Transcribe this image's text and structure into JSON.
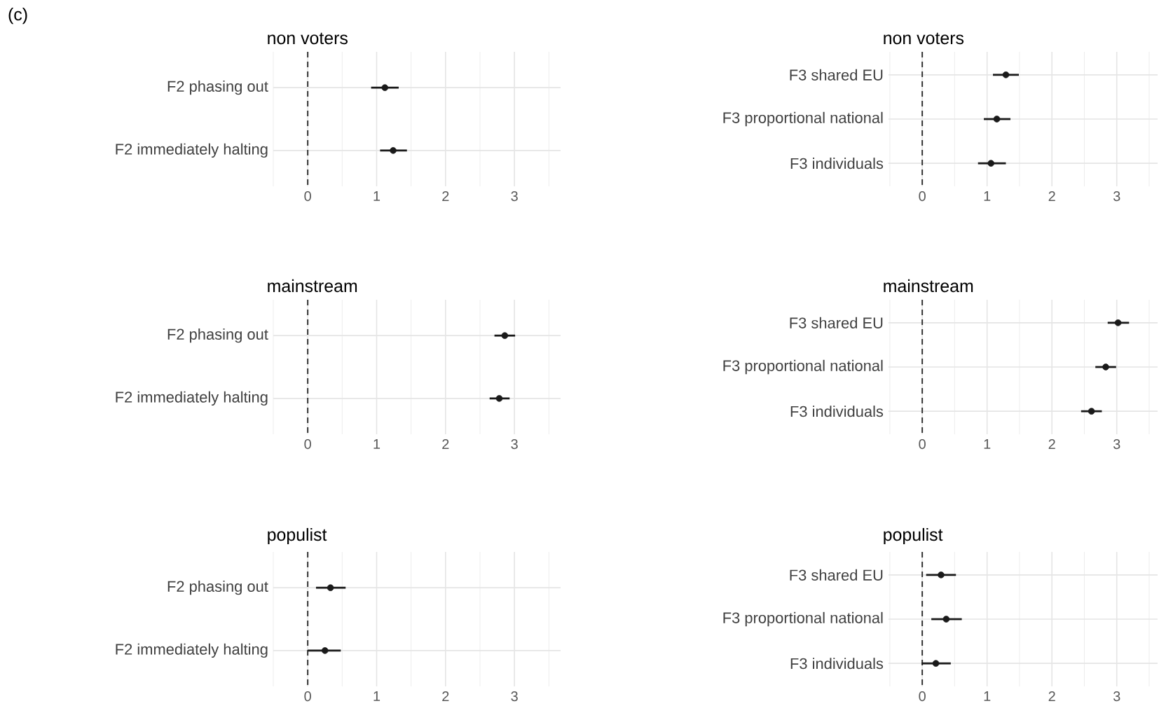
{
  "chart_data": [
    {
      "type": "scatter",
      "orientation": "horizontal",
      "title": "non voters",
      "annotations": [
        "(c)"
      ],
      "categories": [
        "F2 phasing out",
        "F2 immediately halting"
      ],
      "values": [
        1.12,
        1.24
      ],
      "errors": [
        [
          0.92,
          1.32
        ],
        [
          1.05,
          1.44
        ]
      ],
      "color": "#1a1a1a",
      "xlim": [
        -0.5,
        3.67
      ],
      "xticks": [
        0,
        1,
        2,
        3
      ],
      "grid": true,
      "ref_lines": [
        {
          "axis": "x",
          "value": 0,
          "line_style": "dashed",
          "color": "#333333"
        }
      ]
    },
    {
      "type": "scatter",
      "orientation": "horizontal",
      "title": "non voters",
      "categories": [
        "F3 shared EU",
        "F3 proportional national",
        "F3 individuals"
      ],
      "values": [
        1.29,
        1.15,
        1.06
      ],
      "errors": [
        [
          1.09,
          1.49
        ],
        [
          0.95,
          1.36
        ],
        [
          0.86,
          1.29
        ]
      ],
      "color": "#1a1a1a",
      "xlim": [
        -0.52,
        3.63
      ],
      "xticks": [
        0,
        1,
        2,
        3
      ],
      "grid": true,
      "ref_lines": [
        {
          "axis": "x",
          "value": 0,
          "line_style": "dashed",
          "color": "#333333"
        }
      ]
    },
    {
      "type": "scatter",
      "orientation": "horizontal",
      "title": "mainstream",
      "categories": [
        "F2 phasing out",
        "F2 immediately halting"
      ],
      "values": [
        2.86,
        2.78
      ],
      "errors": [
        [
          2.71,
          3.01
        ],
        [
          2.64,
          2.93
        ]
      ],
      "color": "#1a1a1a",
      "xlim": [
        -0.5,
        3.67
      ],
      "xticks": [
        0,
        1,
        2,
        3
      ],
      "grid": true,
      "ref_lines": [
        {
          "axis": "x",
          "value": 0,
          "line_style": "dashed",
          "color": "#333333"
        }
      ]
    },
    {
      "type": "scatter",
      "orientation": "horizontal",
      "title": "mainstream",
      "categories": [
        "F3 shared EU",
        "F3 proportional national",
        "F3 individuals"
      ],
      "values": [
        3.02,
        2.83,
        2.61
      ],
      "errors": [
        [
          2.86,
          3.19
        ],
        [
          2.67,
          2.99
        ],
        [
          2.45,
          2.77
        ]
      ],
      "color": "#1a1a1a",
      "xlim": [
        -0.52,
        3.63
      ],
      "xticks": [
        0,
        1,
        2,
        3
      ],
      "grid": true,
      "ref_lines": [
        {
          "axis": "x",
          "value": 0,
          "line_style": "dashed",
          "color": "#333333"
        }
      ]
    },
    {
      "type": "scatter",
      "orientation": "horizontal",
      "title": "populist",
      "categories": [
        "F2 phasing out",
        "F2 immediately halting"
      ],
      "values": [
        0.33,
        0.25
      ],
      "errors": [
        [
          0.12,
          0.55
        ],
        [
          0.0,
          0.48
        ]
      ],
      "color": "#1a1a1a",
      "xlim": [
        -0.5,
        3.67
      ],
      "xticks": [
        0,
        1,
        2,
        3
      ],
      "grid": true,
      "ref_lines": [
        {
          "axis": "x",
          "value": 0,
          "line_style": "dashed",
          "color": "#333333"
        }
      ]
    },
    {
      "type": "scatter",
      "orientation": "horizontal",
      "title": "populist",
      "categories": [
        "F3 shared EU",
        "F3 proportional national",
        "F3 individuals"
      ],
      "values": [
        0.29,
        0.37,
        0.21
      ],
      "errors": [
        [
          0.06,
          0.52
        ],
        [
          0.14,
          0.61
        ],
        [
          -0.01,
          0.44
        ]
      ],
      "color": "#1a1a1a",
      "xlim": [
        -0.52,
        3.63
      ],
      "xticks": [
        0,
        1,
        2,
        3
      ],
      "grid": true,
      "ref_lines": [
        {
          "axis": "x",
          "value": 0,
          "line_style": "dashed",
          "color": "#333333"
        }
      ]
    }
  ]
}
